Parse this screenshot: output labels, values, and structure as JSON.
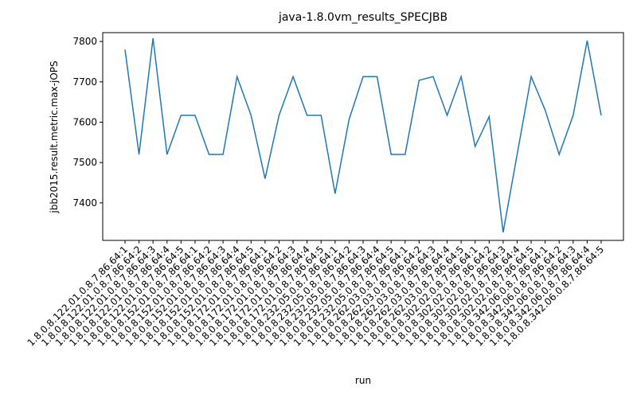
{
  "chart_data": {
    "type": "line",
    "title": "java-1.8.0vm_results_SPECJBB",
    "x_label": "run",
    "y_label": "jbb2015.result.metric.max-jOPS",
    "categories": [
      "1.8.0.8.122.01.0.8.7.86.64:1",
      "1.8.0.8.122.01.0.8.7.86.64:2",
      "1.8.0.8.122.01.0.8.7.86.64:3",
      "1.8.0.8.122.01.0.8.7.86.64:4",
      "1.8.0.8.122.01.0.8.7.86.64:5",
      "1.8.0.8.152.01.0.8.7.86.64:1",
      "1.8.0.8.152.01.0.8.7.86.64:2",
      "1.8.0.8.152.01.0.8.7.86.64:3",
      "1.8.0.8.152.01.0.8.7.86.64:4",
      "1.8.0.8.152.01.0.8.7.86.64:5",
      "1.8.0.8.172.01.0.8.7.86.64:1",
      "1.8.0.8.172.01.0.8.7.86.64:2",
      "1.8.0.8.172.01.0.8.7.86.64:3",
      "1.8.0.8.172.01.0.8.7.86.64:4",
      "1.8.0.8.172.01.0.8.7.86.64:5",
      "1.8.0.8.232.05.0.8.7.86.64:1",
      "1.8.0.8.232.05.0.8.7.86.64:2",
      "1.8.0.8.232.05.0.8.7.86.64:3",
      "1.8.0.8.232.05.0.8.7.86.64:4",
      "1.8.0.8.232.05.0.8.7.86.64:5",
      "1.8.0.8.262.03.0.8.7.86.64:1",
      "1.8.0.8.262.03.0.8.7.86.64:2",
      "1.8.0.8.262.03.0.8.7.86.64:3",
      "1.8.0.8.262.03.0.8.7.86.64:4",
      "1.8.0.8.262.03.0.8.7.86.64:5",
      "1.8.0.8.302.02.0.8.7.86.64:1",
      "1.8.0.8.302.02.0.8.7.86.64:2",
      "1.8.0.8.302.02.0.8.7.86.64:3",
      "1.8.0.8.302.02.0.8.7.86.64:4",
      "1.8.0.8.302.02.0.8.7.86.64:5",
      "1.8.0.8.342.06.0.8.7.86.64:1",
      "1.8.0.8.342.06.0.8.7.86.64:2",
      "1.8.0.8.342.06.0.8.7.86.64:3",
      "1.8.0.8.342.06.0.8.7.86.64:4",
      "1.8.0.8.342.06.0.8.7.86.64:5"
    ],
    "values": [
      7780,
      7520,
      7808,
      7520,
      7617,
      7617,
      7520,
      7520,
      7713,
      7617,
      7460,
      7617,
      7713,
      7617,
      7617,
      7423,
      7607,
      7713,
      7713,
      7520,
      7520,
      7704,
      7713,
      7617,
      7713,
      7540,
      7614,
      7327,
      7520,
      7713,
      7630,
      7520,
      7617,
      7802,
      7617
    ],
    "color": "#1f77b4",
    "ylim": [
      7307,
      7822
    ],
    "yticks": [
      7400,
      7500,
      7600,
      7700,
      7800
    ]
  }
}
